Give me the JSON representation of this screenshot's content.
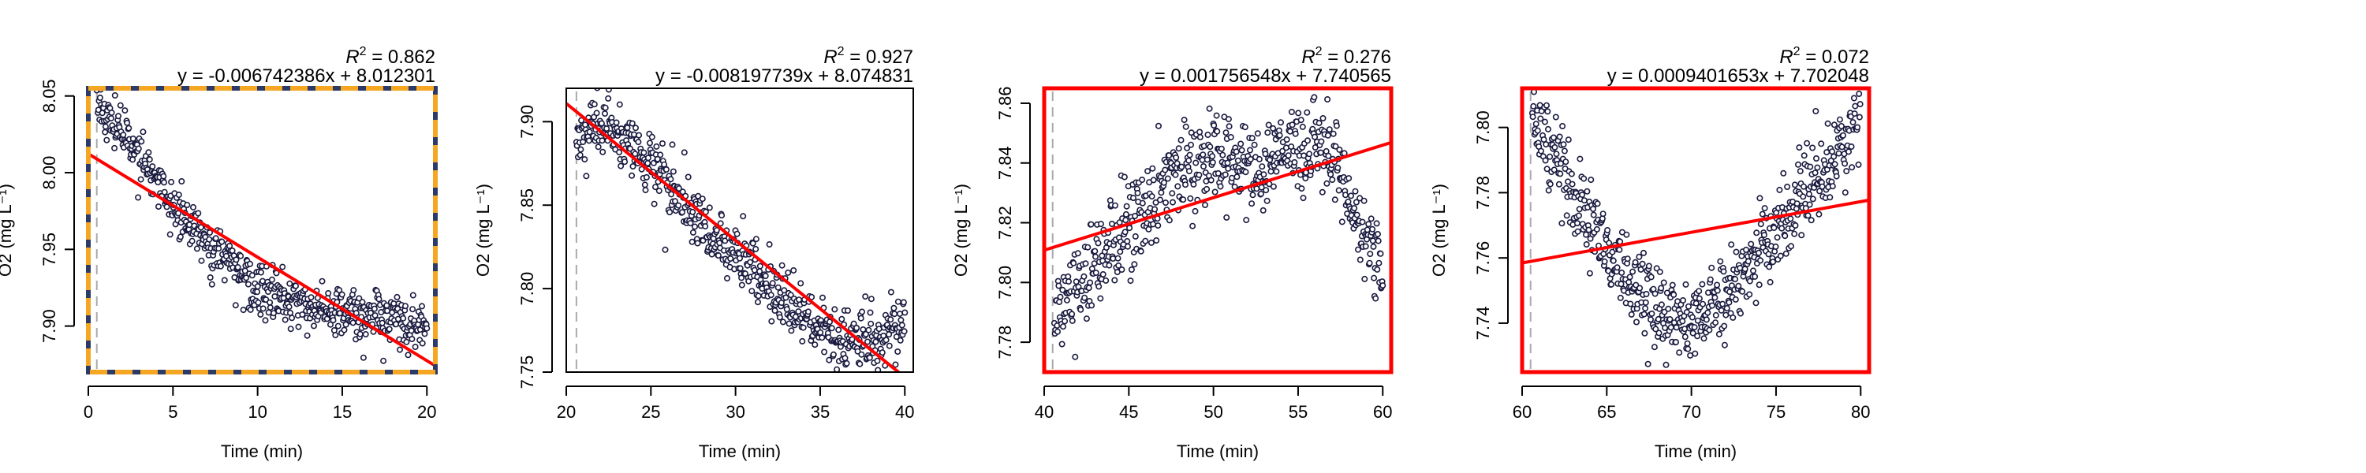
{
  "figure": {
    "panel_count": 4
  },
  "colors": {
    "points_fill": "#ffffff",
    "points_stroke": "#1a1a40",
    "fit_line": "#ff0000",
    "highlight_box": "#ff0000",
    "dashed_box_dark": "#2b3a67",
    "dashed_box_orange": "#f5a623",
    "vline": "#aaaaaa"
  },
  "chart_data": [
    {
      "type": "scatter",
      "xlabel": "Time (min)",
      "ylabel": "O2 (mg L⁻¹)",
      "xlim": [
        0,
        20.5
      ],
      "ylim": [
        7.87,
        8.055
      ],
      "xticks": [
        0,
        5,
        10,
        15,
        20
      ],
      "xtick_labels": [
        "0",
        "5",
        "10",
        "15",
        "20"
      ],
      "yticks": [
        7.9,
        7.95,
        8.0,
        8.05
      ],
      "ytick_labels": [
        "7.90",
        "7.95",
        "8.00",
        "8.05"
      ],
      "fit": {
        "slope": -0.006742386,
        "intercept": 8.012301,
        "r2": "0.862",
        "equation": "y = -0.006742386x + 8.012301"
      },
      "r2_label": "R",
      "r2_value": "= 0.862",
      "vline_x": 0.5,
      "frame_style": "dashed-orange-blue",
      "trend_points": [
        [
          0.5,
          8.045
        ],
        [
          2,
          8.025
        ],
        [
          4,
          7.995
        ],
        [
          6,
          7.965
        ],
        [
          8,
          7.945
        ],
        [
          10,
          7.925
        ],
        [
          12,
          7.915
        ],
        [
          14,
          7.91
        ],
        [
          16,
          7.907
        ],
        [
          18,
          7.903
        ],
        [
          20,
          7.9
        ]
      ],
      "noise": 0.008,
      "n_points": 600
    },
    {
      "type": "scatter",
      "xlabel": "Time (min)",
      "ylabel": "O2 (mg L⁻¹)",
      "xlim": [
        20,
        40.5
      ],
      "ylim": [
        7.75,
        7.92
      ],
      "xticks": [
        20,
        25,
        30,
        35,
        40
      ],
      "xtick_labels": [
        "20",
        "25",
        "30",
        "35",
        "40"
      ],
      "yticks": [
        7.75,
        7.8,
        7.85,
        7.9
      ],
      "ytick_labels": [
        "7.75",
        "7.80",
        "7.85",
        "7.90"
      ],
      "fit": {
        "slope": -0.008197739,
        "intercept": 8.074831,
        "r2": "0.927",
        "equation": "y = -0.008197739x + 8.074831"
      },
      "r2_label": "R",
      "r2_value": "= 0.927",
      "vline_x": 20.6,
      "frame_style": "plain",
      "trend_points": [
        [
          20.6,
          7.895
        ],
        [
          22,
          7.898
        ],
        [
          24,
          7.885
        ],
        [
          26,
          7.865
        ],
        [
          28,
          7.84
        ],
        [
          30,
          7.82
        ],
        [
          32,
          7.8
        ],
        [
          34,
          7.785
        ],
        [
          36,
          7.768
        ],
        [
          38,
          7.77
        ],
        [
          39,
          7.775
        ],
        [
          40,
          7.782
        ]
      ],
      "noise": 0.009,
      "n_points": 600
    },
    {
      "type": "scatter",
      "xlabel": "Time (min)",
      "ylabel": "O2 (mg L⁻¹)",
      "xlim": [
        40,
        60.5
      ],
      "ylim": [
        7.77,
        7.865
      ],
      "xticks": [
        40,
        45,
        50,
        55,
        60
      ],
      "xtick_labels": [
        "40",
        "45",
        "50",
        "55",
        "60"
      ],
      "yticks": [
        7.78,
        7.8,
        7.82,
        7.84,
        7.86
      ],
      "ytick_labels": [
        "7.78",
        "7.80",
        "7.82",
        "7.84",
        "7.86"
      ],
      "fit": {
        "slope": 0.001756548,
        "intercept": 7.740565,
        "r2": "0.276",
        "equation": "y = 0.001756548x + 7.740565"
      },
      "r2_label": "R",
      "r2_value": "= 0.276",
      "vline_x": 40.5,
      "frame_style": "red",
      "trend_points": [
        [
          40.6,
          7.79
        ],
        [
          42,
          7.798
        ],
        [
          44,
          7.812
        ],
        [
          46,
          7.825
        ],
        [
          48,
          7.837
        ],
        [
          50,
          7.842
        ],
        [
          52,
          7.838
        ],
        [
          54,
          7.843
        ],
        [
          56,
          7.847
        ],
        [
          57.5,
          7.838
        ],
        [
          58.5,
          7.82
        ],
        [
          59.5,
          7.81
        ],
        [
          60,
          7.808
        ]
      ],
      "noise": 0.007,
      "n_points": 600
    },
    {
      "type": "scatter",
      "xlabel": "Time (min)",
      "ylabel": "O2 (mg L⁻¹)",
      "xlim": [
        60,
        80.5
      ],
      "ylim": [
        7.725,
        7.812
      ],
      "xticks": [
        60,
        65,
        70,
        75,
        80
      ],
      "xtick_labels": [
        "60",
        "65",
        "70",
        "75",
        "80"
      ],
      "yticks": [
        7.74,
        7.76,
        7.78,
        7.8
      ],
      "ytick_labels": [
        "7.74",
        "7.76",
        "7.78",
        "7.80"
      ],
      "fit": {
        "slope": 0.0009401653,
        "intercept": 7.702048,
        "r2": "0.072",
        "equation": "y = 0.0009401653x + 7.702048"
      },
      "r2_label": "R",
      "r2_value": "= 0.072",
      "vline_x": 60.5,
      "frame_style": "red",
      "trend_points": [
        [
          60.6,
          7.803
        ],
        [
          62,
          7.79
        ],
        [
          64,
          7.77
        ],
        [
          66,
          7.755
        ],
        [
          68,
          7.743
        ],
        [
          70,
          7.74
        ],
        [
          72,
          7.748
        ],
        [
          74,
          7.762
        ],
        [
          76,
          7.775
        ],
        [
          78,
          7.788
        ],
        [
          80,
          7.802
        ]
      ],
      "noise": 0.006,
      "n_points": 600
    }
  ]
}
